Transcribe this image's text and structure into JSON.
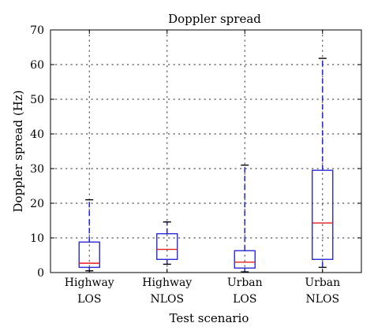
{
  "chart_data": {
    "type": "box",
    "title": "Doppler spread",
    "xlabel": "Test scenario",
    "ylabel": "Doppler spread (Hz)",
    "ylim": [
      0,
      70
    ],
    "yticks": [
      0,
      10,
      20,
      30,
      40,
      50,
      60,
      70
    ],
    "grid": true,
    "categories": [
      {
        "line1": "Highway",
        "line2": "LOS"
      },
      {
        "line1": "Highway",
        "line2": "NLOS"
      },
      {
        "line1": "Urban",
        "line2": "LOS"
      },
      {
        "line1": "Urban",
        "line2": "NLOS"
      }
    ],
    "boxes": [
      {
        "min": 0.5,
        "q1": 1.5,
        "median": 2.7,
        "q3": 8.8,
        "max": 21
      },
      {
        "min": 2.4,
        "q1": 3.8,
        "median": 6.7,
        "q3": 11.2,
        "max": 14.6
      },
      {
        "min": 0.2,
        "q1": 1.3,
        "median": 3.0,
        "q3": 6.3,
        "max": 31
      },
      {
        "min": 1.5,
        "q1": 3.8,
        "median": 14.3,
        "q3": 29.5,
        "max": 61.8
      }
    ],
    "colors": {
      "box": "#2b2bd4",
      "median": "#e01e1e",
      "grid": "#555555"
    }
  }
}
